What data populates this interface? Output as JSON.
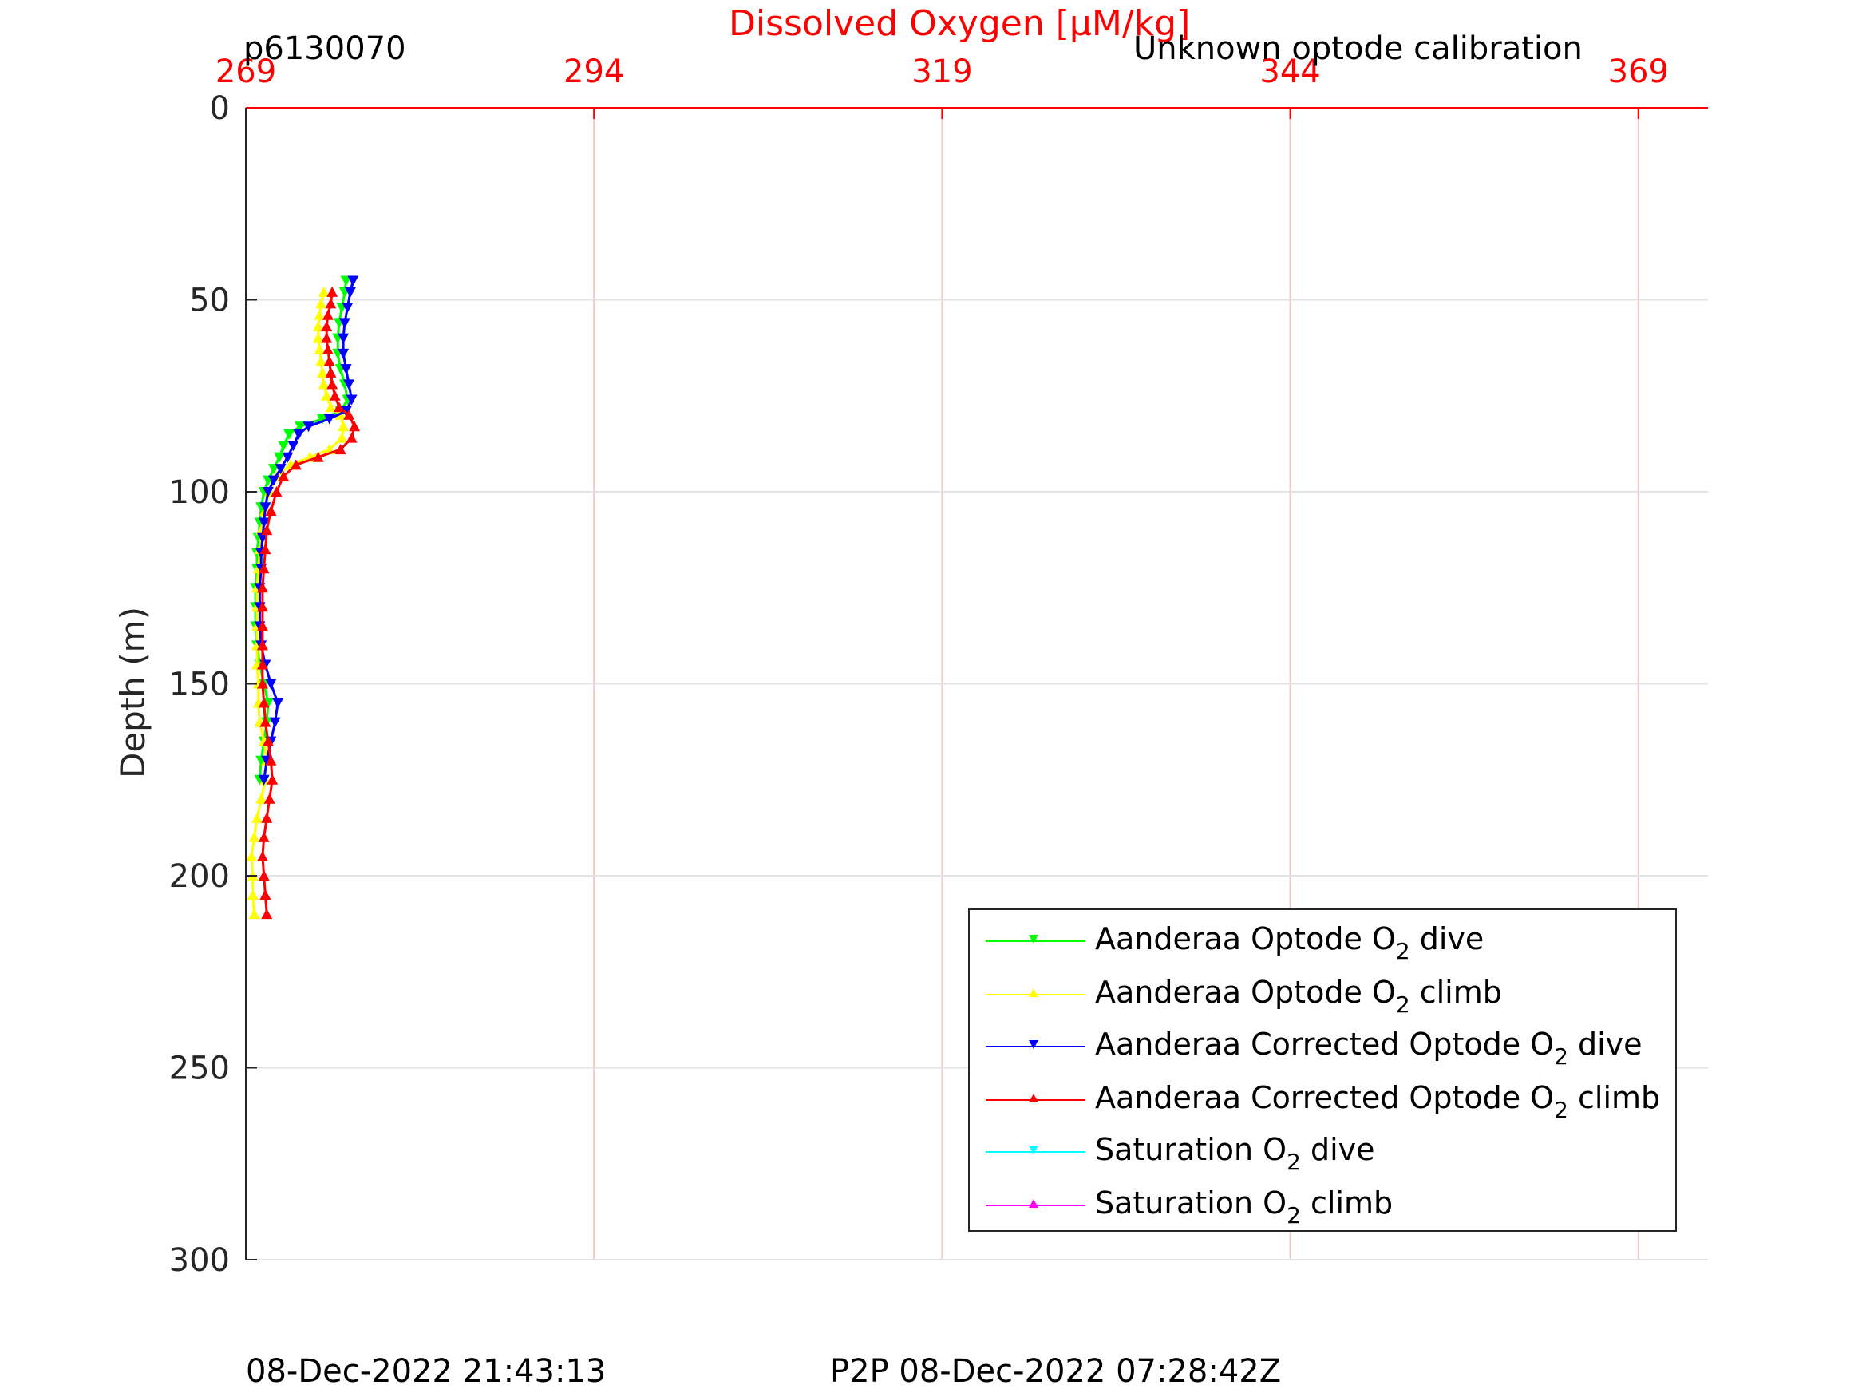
{
  "chart_data": {
    "type": "line",
    "title": "Dissolved Oxygen [μM/kg]",
    "subtitle_left": "p6130070",
    "subtitle_right": "Unknown optode calibration",
    "xlabel": "Dissolved Oxygen [μM/kg]",
    "ylabel": "Depth (m)",
    "x_axis_position": "top",
    "y_axis_reversed": true,
    "xlim": [
      269,
      374
    ],
    "ylim": [
      0,
      300
    ],
    "x_ticks": [
      269,
      294,
      319,
      344,
      369
    ],
    "x_tick_labels": [
      "269",
      "294",
      "319",
      "344",
      "369"
    ],
    "y_ticks": [
      0,
      50,
      100,
      150,
      200,
      250,
      300
    ],
    "y_tick_labels": [
      "0",
      "50",
      "100",
      "150",
      "200",
      "250",
      "300"
    ],
    "grid": true,
    "legend_position": "bottom-right",
    "colors": {
      "axis_top": "#ff0000",
      "axis_left": "#262626",
      "grid_vertical": "#f2c8c8",
      "grid_horizontal": "#e3e3e3"
    },
    "series": [
      {
        "name": "Aanderaa Optode O2 dive",
        "label_main": "Aanderaa Optode O",
        "label_sub": "2",
        "label_tail": " dive",
        "color": "#00ff00",
        "marker": "down",
        "points": [
          [
            276.2,
            45
          ],
          [
            276.1,
            48
          ],
          [
            275.9,
            52
          ],
          [
            275.7,
            56
          ],
          [
            275.6,
            60
          ],
          [
            275.6,
            64
          ],
          [
            275.8,
            68
          ],
          [
            276.1,
            72
          ],
          [
            276.3,
            76
          ],
          [
            275.8,
            79
          ],
          [
            274.5,
            81
          ],
          [
            272.9,
            83
          ],
          [
            272.1,
            85
          ],
          [
            271.7,
            88
          ],
          [
            271.4,
            91
          ],
          [
            271.0,
            94
          ],
          [
            270.6,
            97
          ],
          [
            270.3,
            100
          ],
          [
            270.1,
            104
          ],
          [
            270.0,
            108
          ],
          [
            269.9,
            112
          ],
          [
            269.8,
            116
          ],
          [
            269.8,
            120
          ],
          [
            269.7,
            125
          ],
          [
            269.7,
            130
          ],
          [
            269.7,
            135
          ],
          [
            269.8,
            140
          ],
          [
            270.0,
            145
          ],
          [
            270.3,
            150
          ],
          [
            270.6,
            155
          ],
          [
            270.5,
            160
          ],
          [
            270.3,
            165
          ],
          [
            270.1,
            170
          ],
          [
            270.0,
            175
          ]
        ]
      },
      {
        "name": "Aanderaa Optode O2 climb",
        "label_main": "Aanderaa Optode O",
        "label_sub": "2",
        "label_tail": " climb",
        "color": "#ffff00",
        "marker": "up",
        "points": [
          [
            269.6,
            210
          ],
          [
            269.5,
            205
          ],
          [
            269.5,
            200
          ],
          [
            269.4,
            195
          ],
          [
            269.6,
            190
          ],
          [
            269.8,
            185
          ],
          [
            270.1,
            180
          ],
          [
            270.4,
            175
          ],
          [
            270.5,
            170
          ],
          [
            270.3,
            165
          ],
          [
            270.0,
            160
          ],
          [
            269.9,
            155
          ],
          [
            269.9,
            150
          ],
          [
            269.8,
            145
          ],
          [
            269.8,
            140
          ],
          [
            269.8,
            135
          ],
          [
            269.8,
            130
          ],
          [
            269.8,
            125
          ],
          [
            269.9,
            120
          ],
          [
            270.0,
            115
          ],
          [
            270.1,
            110
          ],
          [
            270.4,
            105
          ],
          [
            270.7,
            100
          ],
          [
            271.2,
            96
          ],
          [
            272.2,
            93
          ],
          [
            273.6,
            91
          ],
          [
            275.0,
            89
          ],
          [
            275.9,
            86
          ],
          [
            276.0,
            83
          ],
          [
            275.8,
            80
          ],
          [
            275.1,
            78
          ],
          [
            274.8,
            75
          ],
          [
            274.6,
            72
          ],
          [
            274.5,
            69
          ],
          [
            274.4,
            66
          ],
          [
            274.3,
            63
          ],
          [
            274.2,
            60
          ],
          [
            274.2,
            57
          ],
          [
            274.3,
            54
          ],
          [
            274.4,
            51
          ],
          [
            274.6,
            48
          ]
        ]
      },
      {
        "name": "Aanderaa Corrected Optode O2 dive",
        "label_main": "Aanderaa Corrected Optode O",
        "label_sub": "2",
        "label_tail": " dive",
        "color": "#0000ff",
        "marker": "down",
        "points": [
          [
            276.7,
            45
          ],
          [
            276.5,
            48
          ],
          [
            276.3,
            52
          ],
          [
            276.1,
            56
          ],
          [
            276.0,
            60
          ],
          [
            276.0,
            64
          ],
          [
            276.2,
            68
          ],
          [
            276.4,
            72
          ],
          [
            276.6,
            76
          ],
          [
            276.2,
            79
          ],
          [
            275.0,
            81
          ],
          [
            273.5,
            83
          ],
          [
            272.8,
            85
          ],
          [
            272.4,
            88
          ],
          [
            272.0,
            91
          ],
          [
            271.5,
            94
          ],
          [
            271.0,
            97
          ],
          [
            270.6,
            100
          ],
          [
            270.4,
            104
          ],
          [
            270.3,
            108
          ],
          [
            270.2,
            112
          ],
          [
            270.1,
            116
          ],
          [
            270.1,
            120
          ],
          [
            270.0,
            125
          ],
          [
            270.0,
            130
          ],
          [
            270.0,
            135
          ],
          [
            270.1,
            140
          ],
          [
            270.4,
            145
          ],
          [
            270.8,
            150
          ],
          [
            271.3,
            155
          ],
          [
            271.1,
            160
          ],
          [
            270.8,
            165
          ],
          [
            270.5,
            170
          ],
          [
            270.3,
            175
          ]
        ]
      },
      {
        "name": "Aanderaa Corrected Optode O2 climb",
        "label_main": "Aanderaa Corrected Optode O",
        "label_sub": "2",
        "label_tail": " climb",
        "color": "#ff0000",
        "marker": "up",
        "points": [
          [
            270.5,
            210
          ],
          [
            270.4,
            205
          ],
          [
            270.3,
            200
          ],
          [
            270.2,
            195
          ],
          [
            270.3,
            190
          ],
          [
            270.5,
            185
          ],
          [
            270.7,
            180
          ],
          [
            270.9,
            175
          ],
          [
            270.8,
            170
          ],
          [
            270.6,
            165
          ],
          [
            270.4,
            160
          ],
          [
            270.3,
            155
          ],
          [
            270.2,
            150
          ],
          [
            270.2,
            145
          ],
          [
            270.2,
            140
          ],
          [
            270.2,
            135
          ],
          [
            270.2,
            130
          ],
          [
            270.2,
            125
          ],
          [
            270.3,
            120
          ],
          [
            270.4,
            115
          ],
          [
            270.5,
            110
          ],
          [
            270.8,
            105
          ],
          [
            271.2,
            100
          ],
          [
            271.7,
            96
          ],
          [
            272.6,
            93
          ],
          [
            274.2,
            91
          ],
          [
            275.8,
            89
          ],
          [
            276.6,
            86
          ],
          [
            276.8,
            83
          ],
          [
            276.4,
            80
          ],
          [
            275.7,
            78
          ],
          [
            275.4,
            75
          ],
          [
            275.2,
            72
          ],
          [
            275.1,
            69
          ],
          [
            275.0,
            66
          ],
          [
            274.9,
            63
          ],
          [
            274.8,
            60
          ],
          [
            274.8,
            57
          ],
          [
            274.9,
            54
          ],
          [
            275.1,
            51
          ],
          [
            275.2,
            48
          ]
        ]
      },
      {
        "name": "Saturation O2 dive",
        "label_main": "Saturation O",
        "label_sub": "2",
        "label_tail": " dive",
        "color": "#00ffff",
        "marker": "down",
        "points": []
      },
      {
        "name": "Saturation O2 climb",
        "label_main": "Saturation O",
        "label_sub": "2",
        "label_tail": " climb",
        "color": "#ff00ff",
        "marker": "up",
        "points": []
      }
    ]
  },
  "footer": {
    "left": "08-Dec-2022 21:43:13",
    "right": "P2P 08-Dec-2022 07:28:42Z"
  }
}
